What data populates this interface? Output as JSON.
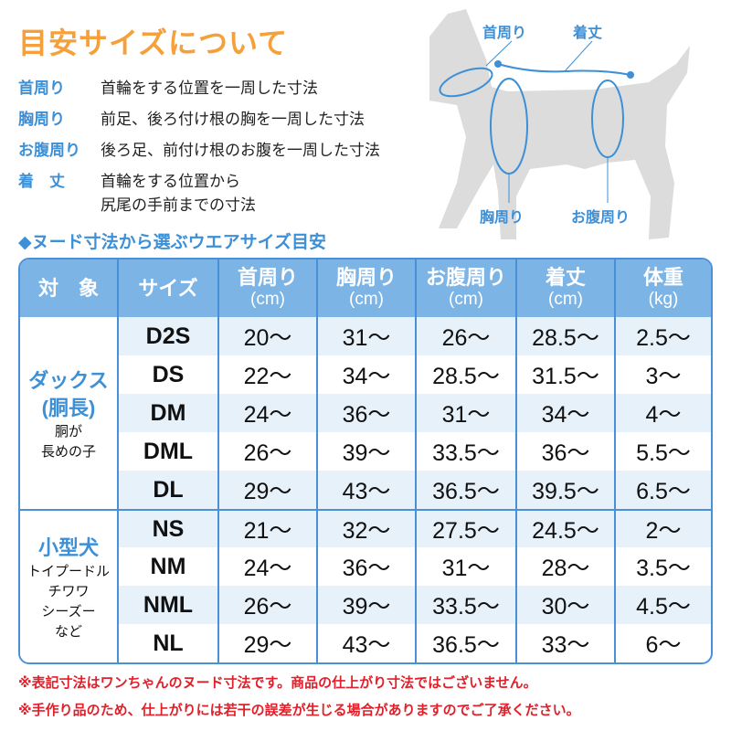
{
  "title": "目安サイズについて",
  "definitions": [
    {
      "term": "首周り",
      "desc": "首輪をする位置を一周した寸法"
    },
    {
      "term": "胸周り",
      "desc": "前足、後ろ付け根の胸を一周した寸法"
    },
    {
      "term": "お腹周り",
      "desc": "後ろ足、前付け根のお腹を一周した寸法"
    },
    {
      "term": "着　丈",
      "desc": "首輪をする位置から",
      "desc2": "尻尾の手前までの寸法"
    }
  ],
  "diagram": {
    "neck": "首周り",
    "length": "着丈",
    "chest": "胸周り",
    "belly": "お腹周り"
  },
  "subtitle": "◆ヌード寸法から選ぶウエアサイズ目安",
  "table": {
    "headers": [
      {
        "label": "対　象"
      },
      {
        "label": "サイズ"
      },
      {
        "label": "首周り",
        "unit": "(cm)"
      },
      {
        "label": "胸周り",
        "unit": "(cm)"
      },
      {
        "label": "お腹周り",
        "unit": "(cm)"
      },
      {
        "label": "着丈",
        "unit": "(cm)"
      },
      {
        "label": "体重",
        "unit": "(kg)"
      }
    ],
    "groups": [
      {
        "name": "ダックス",
        "name2": "(胴長)",
        "desc": "胴が",
        "desc2": "長めの子",
        "rows": [
          [
            "D2S",
            "20〜",
            "31〜",
            "26〜",
            "28.5〜",
            "2.5〜"
          ],
          [
            "DS",
            "22〜",
            "34〜",
            "28.5〜",
            "31.5〜",
            "3〜"
          ],
          [
            "DM",
            "24〜",
            "36〜",
            "31〜",
            "34〜",
            "4〜"
          ],
          [
            "DML",
            "26〜",
            "39〜",
            "33.5〜",
            "36〜",
            "5.5〜"
          ],
          [
            "DL",
            "29〜",
            "43〜",
            "36.5〜",
            "39.5〜",
            "6.5〜"
          ]
        ]
      },
      {
        "name": "小型犬",
        "desc": "トイプードル",
        "desc2": "チワワ",
        "desc3": "シーズー",
        "desc4": "など",
        "rows": [
          [
            "NS",
            "21〜",
            "32〜",
            "27.5〜",
            "24.5〜",
            "2〜"
          ],
          [
            "NM",
            "24〜",
            "36〜",
            "31〜",
            "28〜",
            "3.5〜"
          ],
          [
            "NML",
            "26〜",
            "39〜",
            "33.5〜",
            "30〜",
            "4.5〜"
          ],
          [
            "NL",
            "29〜",
            "43〜",
            "36.5〜",
            "33〜",
            "6〜"
          ]
        ]
      }
    ]
  },
  "notes": [
    "※表記寸法はワンちゃんのヌード寸法です。商品の仕上がり寸法ではございません。",
    "※手作り品のため、仕上がりには若干の誤差が生じる場合がありますのでご了承ください。"
  ],
  "colors": {
    "title": "#f5a03a",
    "accent": "#3d8fd6",
    "header": "#7db4e6",
    "stripe": "#e6f1fa",
    "note": "#e0202a"
  }
}
